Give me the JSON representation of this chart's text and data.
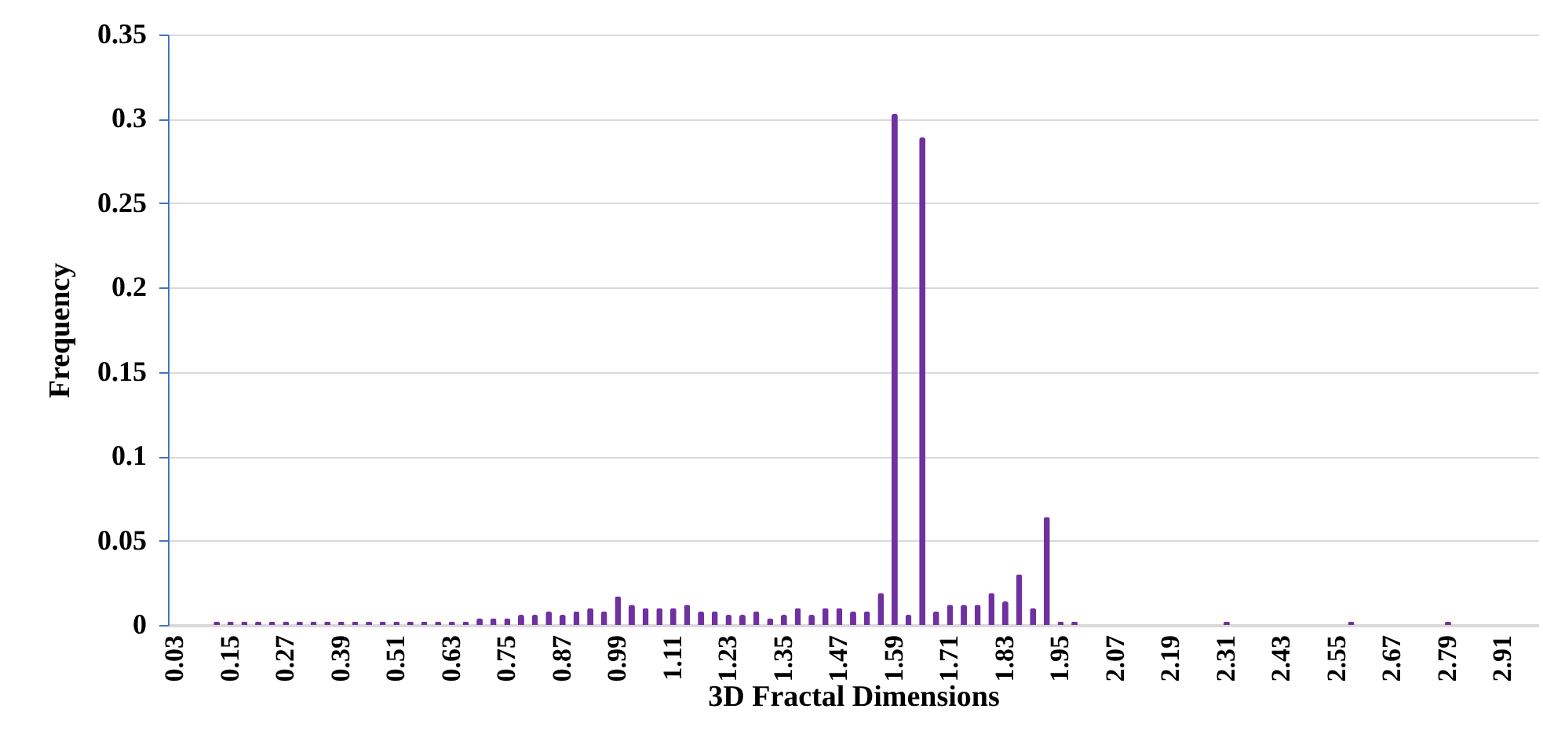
{
  "chart_data": {
    "type": "bar",
    "xlabel": "3D Fractal Dimensions",
    "ylabel": "Frequency",
    "categories": [
      "0.03",
      null,
      null,
      null,
      "0.15",
      null,
      null,
      null,
      "0.27",
      null,
      null,
      null,
      "0.39",
      null,
      null,
      null,
      "0.51",
      null,
      null,
      null,
      "0.63",
      null,
      null,
      null,
      "0.75",
      null,
      null,
      null,
      "0.87",
      null,
      null,
      null,
      "0.99",
      null,
      null,
      null,
      "1.11",
      null,
      null,
      null,
      "1.23",
      null,
      null,
      null,
      "1.35",
      null,
      null,
      null,
      "1.47",
      null,
      null,
      null,
      "1.59",
      null,
      null,
      null,
      "1.71",
      null,
      null,
      null,
      "1.83",
      null,
      null,
      null,
      "1.95",
      null,
      null,
      null,
      "2.07",
      null,
      null,
      null,
      "2.19",
      null,
      null,
      null,
      "2.31",
      null,
      null,
      null,
      "2.43",
      null,
      null,
      null,
      "2.55",
      null,
      null,
      null,
      "2.67",
      null,
      null,
      null,
      "2.79",
      null,
      null,
      null,
      "2.91",
      null,
      null
    ],
    "values": [
      null,
      null,
      null,
      0.002,
      0.002,
      0.002,
      0.002,
      0.002,
      0.002,
      0.002,
      0.002,
      0.002,
      0.002,
      0.002,
      0.002,
      0.002,
      0.002,
      0.002,
      0.002,
      0.002,
      0.002,
      0.002,
      0.004,
      0.004,
      0.004,
      0.006,
      0.006,
      0.008,
      0.006,
      0.008,
      0.01,
      0.008,
      0.017,
      0.012,
      0.01,
      0.01,
      0.01,
      0.012,
      0.008,
      0.008,
      0.006,
      0.006,
      0.008,
      0.004,
      0.006,
      0.01,
      0.006,
      0.01,
      0.01,
      0.008,
      0.008,
      0.019,
      0.303,
      0.006,
      0.289,
      0.008,
      0.012,
      0.012,
      0.012,
      0.019,
      0.014,
      0.03,
      0.01,
      0.064,
      0.002,
      0.002,
      null,
      null,
      null,
      null,
      null,
      null,
      null,
      null,
      null,
      null,
      0.002,
      null,
      null,
      null,
      null,
      null,
      null,
      null,
      null,
      0.002,
      null,
      null,
      null,
      null,
      null,
      null,
      0.002,
      null,
      null,
      null,
      null,
      null,
      null
    ],
    "color": "#7030a0",
    "ylim": [
      0,
      0.35
    ],
    "yticks": [
      0,
      0.05,
      0.1,
      0.15,
      0.2,
      0.25,
      0.3,
      0.35
    ],
    "grid": "y"
  }
}
